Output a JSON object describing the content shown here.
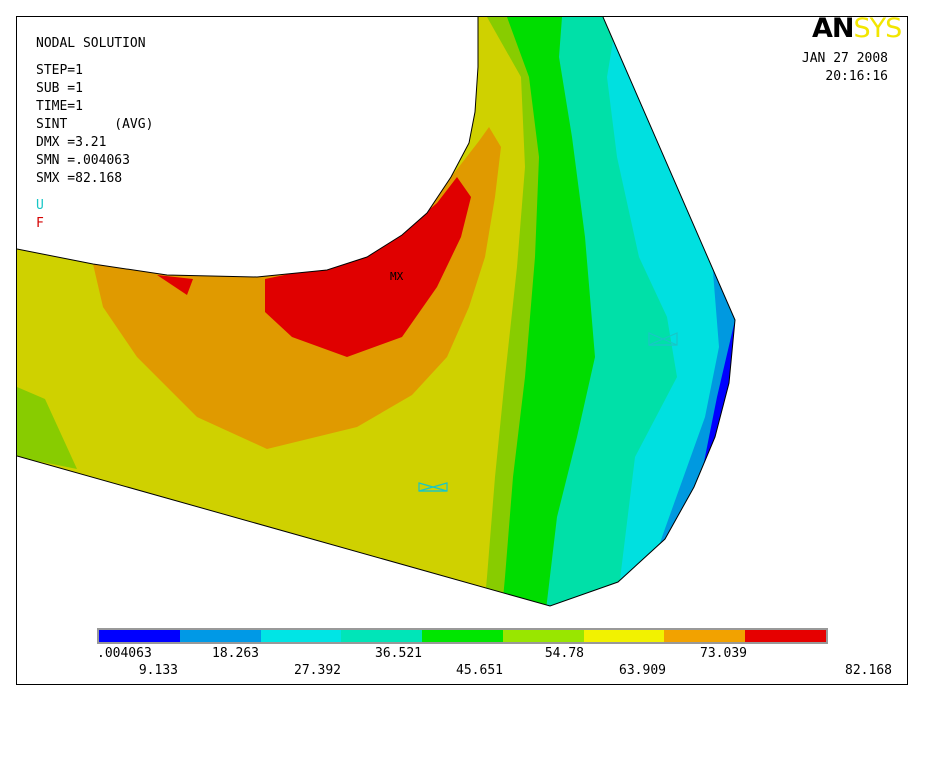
{
  "header": {
    "title": "NODAL SOLUTION",
    "step": "STEP=1",
    "sub": "SUB =1",
    "time": "TIME=1",
    "item": "SINT      (AVG)",
    "dmx": "DMX =3.21",
    "smn": "SMN =.004063",
    "smx": "SMX =82.168",
    "sym_u": "U",
    "sym_f": "F"
  },
  "logo": {
    "part1": "AN",
    "part2": "SYS"
  },
  "date": {
    "line1": "JAN 27 2008",
    "line2": "20:16:16"
  },
  "plot": {
    "max_label": "MX"
  },
  "legend": {
    "colors": [
      "#0000ff",
      "#0099e6",
      "#00e5e5",
      "#00e5b8",
      "#00e600",
      "#99e600",
      "#f2f200",
      "#f2a200",
      "#e60000"
    ],
    "top_labels": [
      ".004063",
      "18.263",
      "36.521",
      "54.78",
      "73.039"
    ],
    "bottom_labels": [
      "9.133",
      "27.392",
      "45.651",
      "63.909",
      "82.168"
    ]
  }
}
